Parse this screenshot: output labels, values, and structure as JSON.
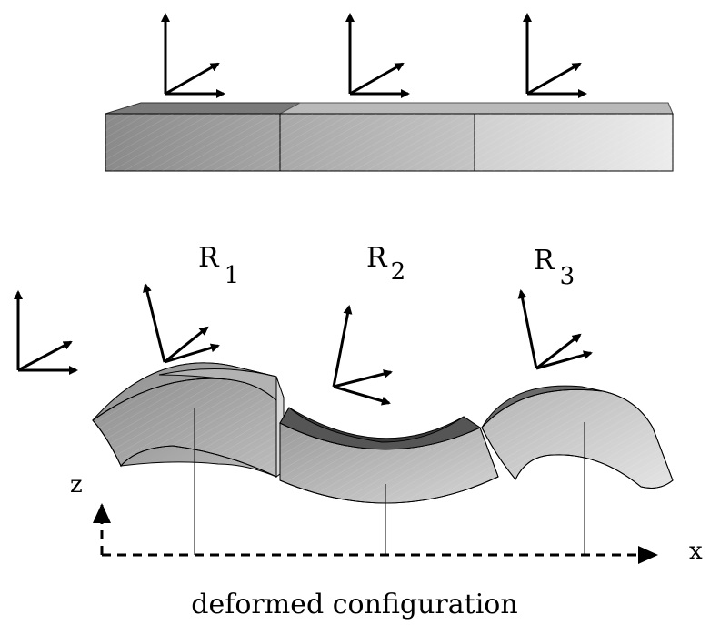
{
  "labels": {
    "r1": {
      "base": "R",
      "sub": "1"
    },
    "r2": {
      "base": "R",
      "sub": "2"
    },
    "r3": {
      "base": "R",
      "sub": "3"
    }
  },
  "axes": {
    "z": "z",
    "x": "x"
  },
  "caption": "deformed configuration"
}
